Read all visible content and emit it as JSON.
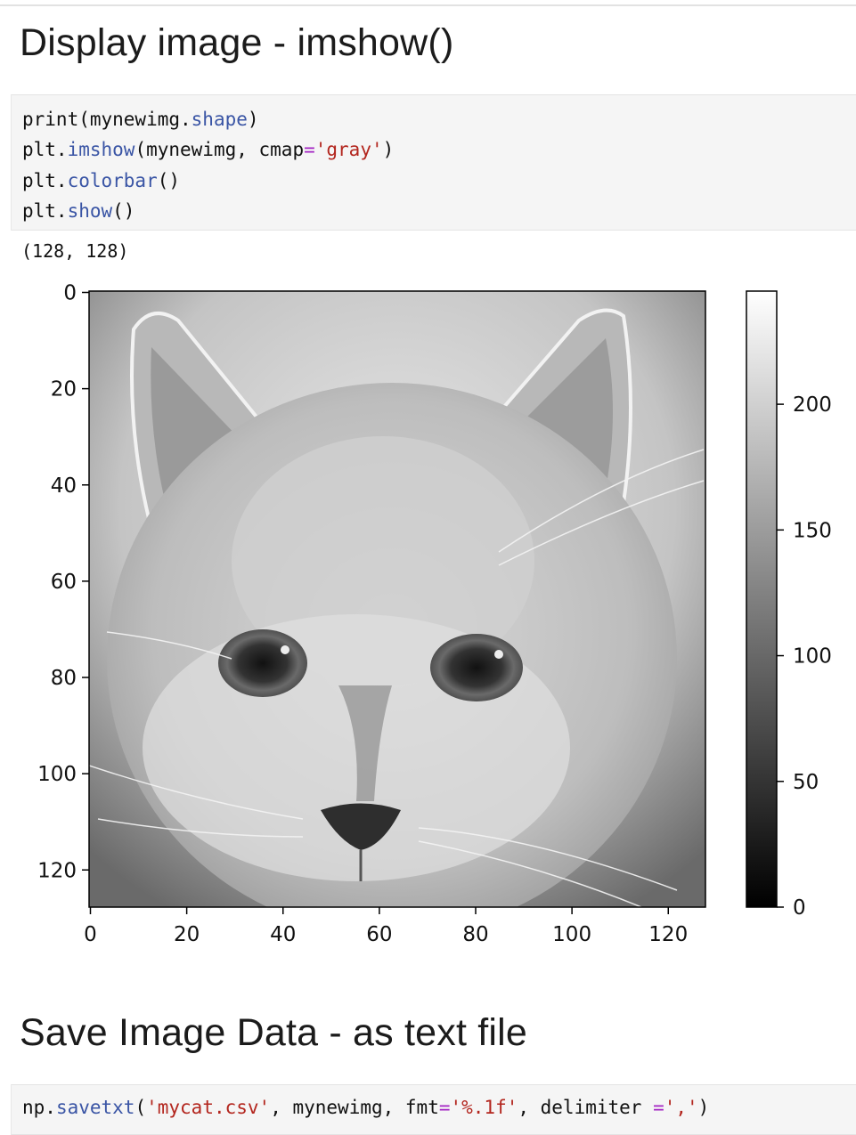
{
  "section1": {
    "title": "Display image - imshow()"
  },
  "cell1": {
    "lines": [
      {
        "parts": [
          {
            "t": "print(mynewimg.",
            "c": "plain"
          },
          {
            "t": "shape",
            "c": "kw"
          },
          {
            "t": ")",
            "c": "plain"
          }
        ]
      },
      {
        "parts": [
          {
            "t": "plt.",
            "c": "plain"
          },
          {
            "t": "imshow",
            "c": "kw"
          },
          {
            "t": "(mynewimg, cmap",
            "c": "plain"
          },
          {
            "t": "=",
            "c": "op"
          },
          {
            "t": "'gray'",
            "c": "str"
          },
          {
            "t": ")",
            "c": "plain"
          }
        ]
      },
      {
        "parts": [
          {
            "t": "plt.",
            "c": "plain"
          },
          {
            "t": "colorbar",
            "c": "kw"
          },
          {
            "t": "()",
            "c": "plain"
          }
        ]
      },
      {
        "parts": [
          {
            "t": "plt.",
            "c": "plain"
          },
          {
            "t": "show",
            "c": "kw"
          },
          {
            "t": "()",
            "c": "plain"
          }
        ]
      }
    ]
  },
  "output1": {
    "text": "(128, 128)"
  },
  "figure": {
    "image_icon": "grayscale-cat-photo",
    "x_ticks": [
      "0",
      "20",
      "40",
      "60",
      "80",
      "100",
      "120"
    ],
    "y_ticks": [
      "0",
      "20",
      "40",
      "60",
      "80",
      "100",
      "120"
    ],
    "axis_range": [
      0,
      128
    ],
    "colorbar_ticks": [
      "0",
      "50",
      "100",
      "150",
      "200"
    ],
    "colorbar_range": [
      0,
      245
    ],
    "cmap": "gray"
  },
  "section2": {
    "title": "Save Image Data - as text file"
  },
  "cell2": {
    "lines": [
      {
        "parts": [
          {
            "t": "np.",
            "c": "plain"
          },
          {
            "t": "savetxt",
            "c": "kw"
          },
          {
            "t": "(",
            "c": "plain"
          },
          {
            "t": "'mycat.csv'",
            "c": "str"
          },
          {
            "t": ", mynewimg, fmt",
            "c": "plain"
          },
          {
            "t": "=",
            "c": "op"
          },
          {
            "t": "'%.1f'",
            "c": "str"
          },
          {
            "t": ", delimiter ",
            "c": "plain"
          },
          {
            "t": "=",
            "c": "op"
          },
          {
            "t": "','",
            "c": "str"
          },
          {
            "t": ")",
            "c": "plain"
          }
        ]
      }
    ]
  }
}
